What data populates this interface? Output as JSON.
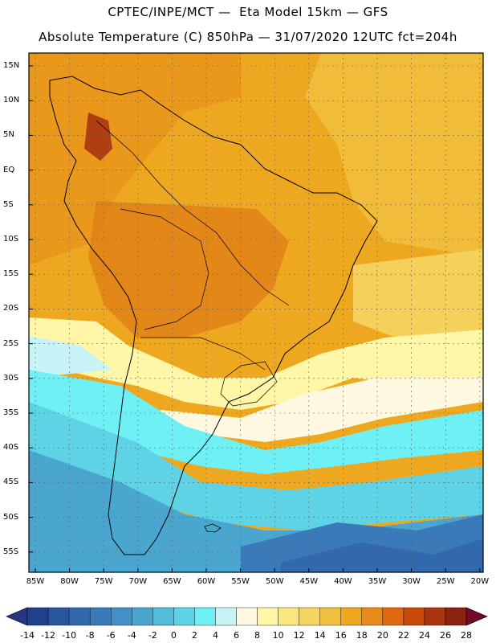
{
  "header": {
    "line1": "CPTEC/INPE/MCT —  Eta Model 15km — GFS",
    "line2": "Absolute Temperature (C) 850hPa — 31/07/2020 12UTC fct=204h"
  },
  "axes": {
    "lat_labels": [
      "15N",
      "10N",
      "5N",
      "EQ",
      "5S",
      "10S",
      "15S",
      "20S",
      "25S",
      "30S",
      "35S",
      "40S",
      "45S",
      "50S",
      "55S"
    ],
    "lon_labels": [
      "85W",
      "80W",
      "75W",
      "70W",
      "65W",
      "60W",
      "55W",
      "50W",
      "45W",
      "40W",
      "35W",
      "30W",
      "25W",
      "20W"
    ]
  },
  "colorbar": {
    "labels": [
      "-14",
      "-12",
      "-10",
      "-8",
      "-6",
      "-4",
      "-2",
      "0",
      "2",
      "4",
      "6",
      "8",
      "10",
      "12",
      "14",
      "16",
      "18",
      "20",
      "22",
      "24",
      "26",
      "28"
    ],
    "colors": [
      "#1f3f8f",
      "#2a56a0",
      "#3268ac",
      "#3a7ab8",
      "#4390c4",
      "#4aa6cf",
      "#52bcd9",
      "#5fd3e6",
      "#6ef0f5",
      "#c8f4f8",
      "#fff8e0",
      "#fff6a8",
      "#fbe780",
      "#f5d460",
      "#f0c040",
      "#eda820",
      "#e88a1a",
      "#e06810",
      "#c84a0a",
      "#a83410",
      "#8a2212"
    ],
    "under_color": "#2a3480",
    "over_color": "#700a28"
  }
}
